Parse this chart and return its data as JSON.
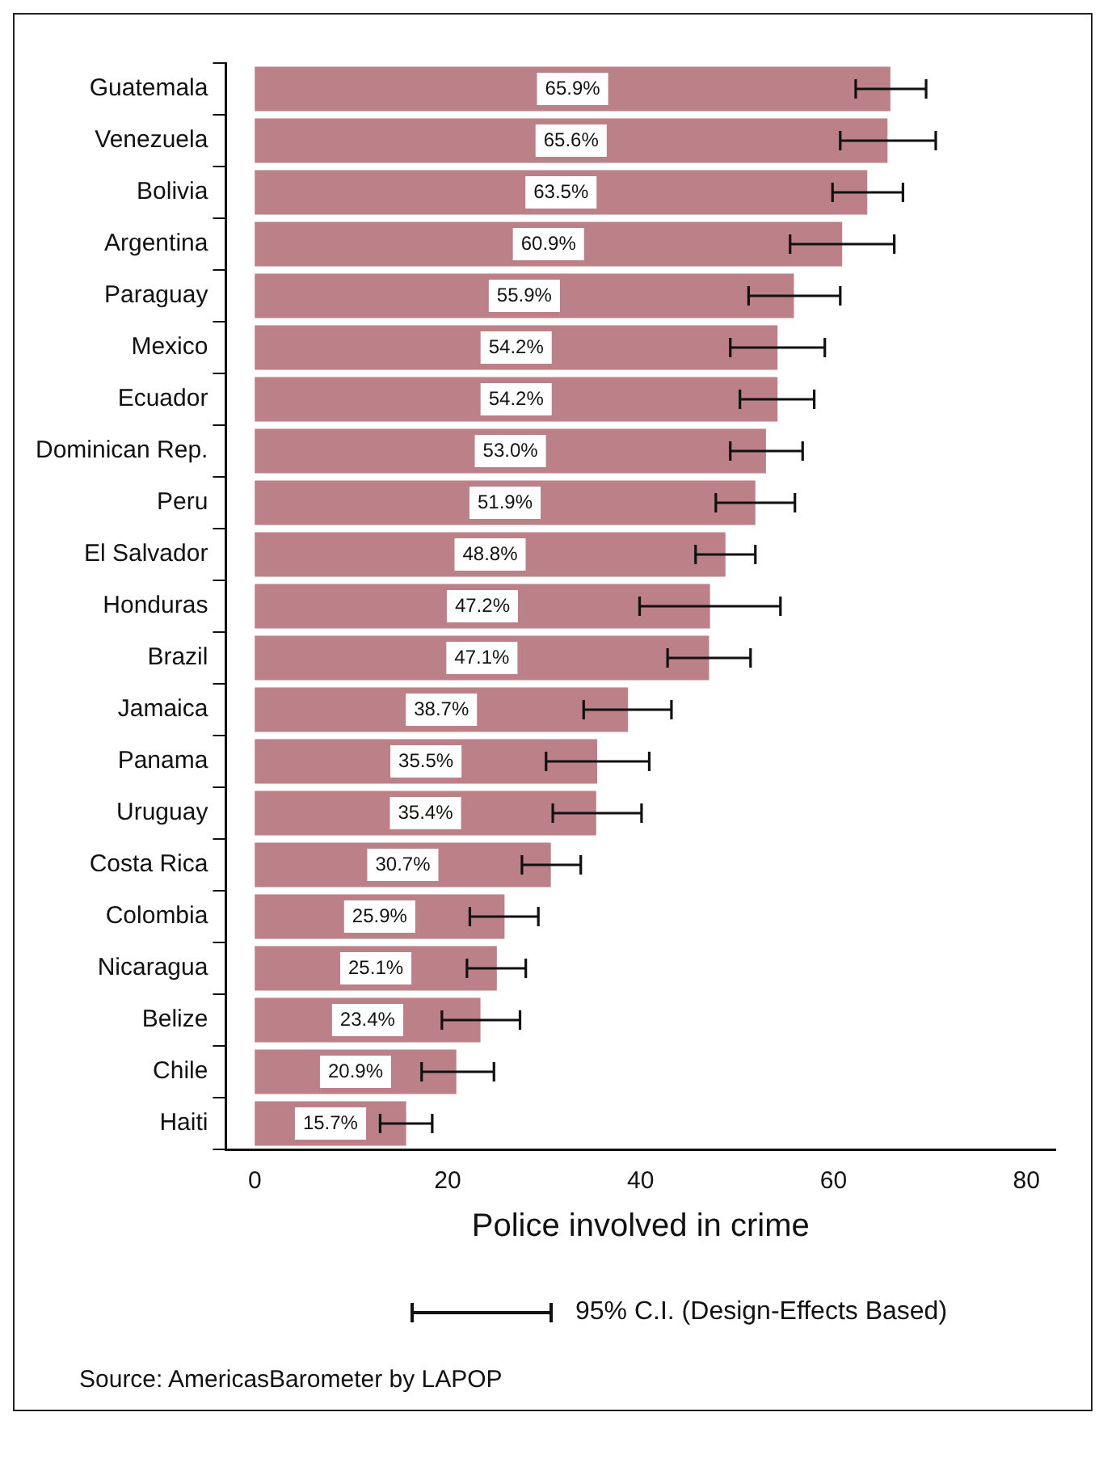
{
  "chart_data": {
    "type": "bar",
    "orientation": "horizontal",
    "categories": [
      "Guatemala",
      "Venezuela",
      "Bolivia",
      "Argentina",
      "Paraguay",
      "Mexico",
      "Ecuador",
      "Dominican Rep.",
      "Peru",
      "El Salvador",
      "Honduras",
      "Brazil",
      "Jamaica",
      "Panama",
      "Uruguay",
      "Costa Rica",
      "Colombia",
      "Nicaragua",
      "Belize",
      "Chile",
      "Haiti"
    ],
    "values": [
      65.9,
      65.6,
      63.5,
      60.9,
      55.9,
      54.2,
      54.2,
      53.0,
      51.9,
      48.8,
      47.2,
      47.1,
      38.7,
      35.5,
      35.4,
      30.7,
      25.9,
      25.1,
      23.4,
      20.9,
      15.7
    ],
    "value_labels": [
      "65.9%",
      "65.6%",
      "63.5%",
      "60.9%",
      "55.9%",
      "54.2%",
      "54.2%",
      "53.0%",
      "51.9%",
      "48.8%",
      "47.2%",
      "47.1%",
      "38.7%",
      "35.5%",
      "35.4%",
      "30.7%",
      "25.9%",
      "25.1%",
      "23.4%",
      "20.9%",
      "15.7%"
    ],
    "errors": [
      [
        62.3,
        69.6
      ],
      [
        60.7,
        70.6
      ],
      [
        59.9,
        67.2
      ],
      [
        55.5,
        66.3
      ],
      [
        51.2,
        60.7
      ],
      [
        49.3,
        59.1
      ],
      [
        50.3,
        58.0
      ],
      [
        49.3,
        56.8
      ],
      [
        47.8,
        56.0
      ],
      [
        45.7,
        51.9
      ],
      [
        39.9,
        54.5
      ],
      [
        42.8,
        51.4
      ],
      [
        34.1,
        43.2
      ],
      [
        30.2,
        40.9
      ],
      [
        30.9,
        40.1
      ],
      [
        27.7,
        33.8
      ],
      [
        22.3,
        29.4
      ],
      [
        22.0,
        28.1
      ],
      [
        19.4,
        27.5
      ],
      [
        17.3,
        24.8
      ],
      [
        13.0,
        18.4
      ]
    ],
    "color": "#bc8088",
    "xlim": [
      -3,
      83
    ],
    "xticks": [
      0,
      20,
      40,
      60,
      80
    ],
    "xlabel": "Police involved in crime",
    "grid": false,
    "legend": false,
    "annotations": [
      "95% C.I. (Design-Effects Based)",
      "Source: AmericasBarometer by  LAPOP"
    ]
  }
}
